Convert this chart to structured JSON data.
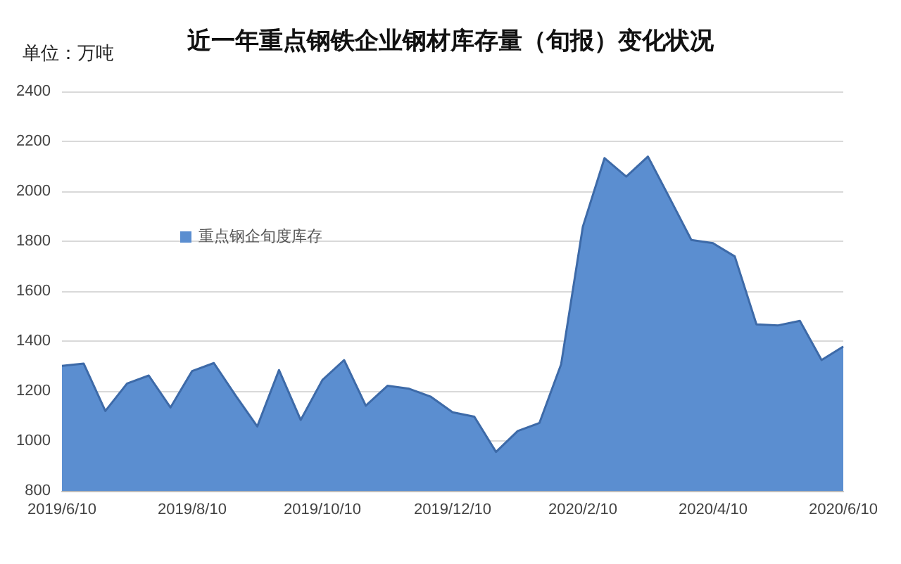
{
  "chart_data": {
    "type": "area",
    "title": "近一年重点钢铁企业钢材库存量（旬报）变化状况",
    "ylabel": "单位：万吨",
    "categories": [
      "2019/6/10",
      null,
      null,
      null,
      null,
      null,
      "2019/8/10",
      null,
      null,
      null,
      null,
      null,
      "2019/10/10",
      null,
      null,
      null,
      null,
      null,
      "2019/12/10",
      null,
      null,
      null,
      null,
      null,
      "2020/2/10",
      null,
      null,
      null,
      null,
      null,
      "2020/4/10",
      null,
      null,
      null,
      null,
      null,
      "2020/6/10"
    ],
    "series": [
      {
        "name": "重点钢企旬度库存",
        "color": "#5b8ed0",
        "values": [
          1301,
          1310,
          1120,
          1230,
          1262,
          1134,
          1280,
          1312,
          1182,
          1058,
          1284,
          1084,
          1244,
          1324,
          1141,
          1221,
          1209,
          1177,
          1115,
          1097,
          956,
          1040,
          1072,
          1307,
          1858,
          2133,
          2059,
          2139,
          1973,
          1805,
          1792,
          1739,
          1467,
          1463,
          1481,
          1324,
          1378
        ]
      }
    ],
    "ylim": [
      800,
      2400
    ],
    "yticks": [
      800,
      1000,
      1200,
      1400,
      1600,
      1800,
      2000,
      2200,
      2400
    ],
    "grid": "y",
    "legend": "top left"
  }
}
